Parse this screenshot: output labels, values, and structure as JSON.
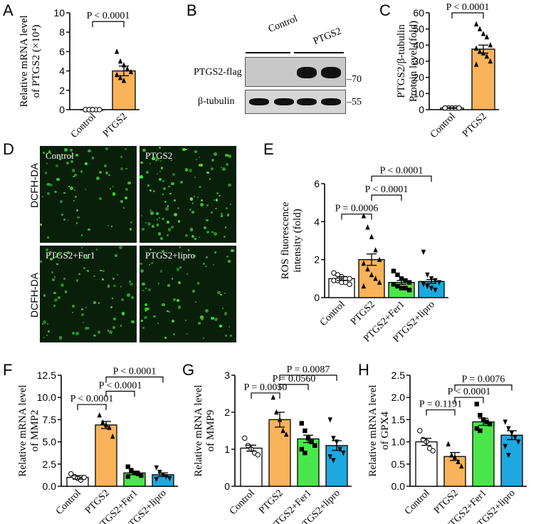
{
  "panels": {
    "A": {
      "letter": "A"
    },
    "B": {
      "letter": "B",
      "groups": [
        "Control",
        "PTGS2"
      ],
      "rows": [
        "PTGS2-flag",
        "β-tubulin"
      ],
      "markers": [
        "70",
        "55"
      ]
    },
    "C": {
      "letter": "C"
    },
    "D": {
      "letter": "D",
      "stain": "DCFH-DA",
      "images": [
        "Control",
        "PTGS2",
        "PTGS2+Fer1",
        "PTGS2+lipro"
      ]
    },
    "E": {
      "letter": "E"
    },
    "F": {
      "letter": "F"
    },
    "G": {
      "letter": "G"
    },
    "H": {
      "letter": "H"
    }
  },
  "chart_data": [
    {
      "id": "A",
      "type": "bar",
      "ylabel_lines": [
        "Relative mRNA level",
        "of PTGS2 (×10⁴)"
      ],
      "ylim": [
        0,
        10
      ],
      "yticks": [
        "0",
        "2",
        "4",
        "6",
        "8",
        "10"
      ],
      "categories": [
        "Control",
        "PTGS2"
      ],
      "values": [
        0.0,
        4.0
      ],
      "sem": [
        0.0,
        0.5
      ],
      "colors": [
        "#ffffff",
        "#f9b35a"
      ],
      "points": [
        [
          0,
          0,
          0,
          0,
          0,
          0,
          0,
          0
        ],
        [
          6.0,
          5.0,
          4.6,
          4.2,
          3.9,
          3.6,
          3.3,
          3.0
        ]
      ],
      "markers": [
        "circle",
        "triangle"
      ],
      "comparisons": [
        {
          "from": 0,
          "to": 1,
          "label": "P < 0.0001",
          "y": 9.1
        }
      ]
    },
    {
      "id": "C",
      "type": "bar",
      "ylabel_lines": [
        "PTGS2/β-tubulin",
        "Protein level (fold)"
      ],
      "ylim": [
        0,
        60
      ],
      "yticks": [
        "0",
        "10",
        "20",
        "30",
        "40",
        "50",
        "60"
      ],
      "categories": [
        "Control",
        "PTGS2"
      ],
      "values": [
        1.0,
        37.5
      ],
      "sem": [
        0.2,
        2.5
      ],
      "colors": [
        "#ffffff",
        "#f9b35a"
      ],
      "points": [
        [
          1,
          1,
          1,
          1,
          1,
          1,
          1,
          1,
          1,
          1,
          1
        ],
        [
          53,
          50,
          47,
          45,
          40,
          38,
          36,
          35,
          33,
          30,
          28
        ]
      ],
      "markers": [
        "circle",
        "triangle"
      ],
      "comparisons": [
        {
          "from": 0,
          "to": 1,
          "label": "P < 0.0001",
          "y": 60
        }
      ]
    },
    {
      "id": "E",
      "type": "bar",
      "ylabel_lines": [
        "ROS fluorescence",
        "intensity (fold)"
      ],
      "ylim": [
        0,
        6
      ],
      "yticks": [
        "0",
        "2",
        "4",
        "6"
      ],
      "categories": [
        "Control",
        "PTGS2",
        "PTGS2+Fer1",
        "PTGS2+lipro"
      ],
      "values": [
        1.0,
        2.0,
        0.8,
        0.85
      ],
      "sem": [
        0.1,
        0.3,
        0.1,
        0.1
      ],
      "colors": [
        "#ffffff",
        "#f9b35a",
        "#4be64b",
        "#1ea8e0"
      ],
      "points": [
        [
          1.3,
          1.2,
          1.1,
          1.0,
          1.0,
          0.9,
          0.9,
          0.8,
          0.8,
          0.7
        ],
        [
          4.3,
          3.7,
          3.2,
          2.5,
          2.0,
          1.8,
          1.5,
          1.2,
          1.0,
          0.8,
          0.6
        ],
        [
          1.4,
          1.2,
          1.0,
          0.9,
          0.8,
          0.7,
          0.6,
          0.5,
          0.5,
          0.4
        ],
        [
          2.4,
          1.2,
          1.0,
          0.9,
          0.8,
          0.7,
          0.6,
          0.5,
          0.4
        ]
      ],
      "markers": [
        "circle",
        "triangle",
        "square",
        "triangle-down"
      ],
      "comparisons": [
        {
          "from": 0,
          "to": 1,
          "label": "P = 0.0006",
          "y": 4.4
        },
        {
          "from": 1,
          "to": 2,
          "label": "P < 0.0001",
          "y": 5.4
        },
        {
          "from": 1,
          "to": 3,
          "label": "P < 0.0001",
          "y": 6.4
        }
      ]
    },
    {
      "id": "F",
      "type": "bar",
      "ylabel_lines": [
        "Relative mRNA level",
        "of MMP2"
      ],
      "ylim": [
        0,
        12.5
      ],
      "yticks": [
        "0.0",
        "2.5",
        "5.0",
        "7.5",
        "10.0",
        "12.5"
      ],
      "categories": [
        "Control",
        "PTGS2",
        "PTGS2+Fer1",
        "PTGS2+lipro"
      ],
      "values": [
        1.0,
        6.9,
        1.5,
        1.3
      ],
      "sem": [
        0.2,
        0.4,
        0.2,
        0.2
      ],
      "colors": [
        "#ffffff",
        "#f9b35a",
        "#4be64b",
        "#1ea8e0"
      ],
      "points": [
        [
          1.4,
          1.1,
          0.9,
          0.7,
          1.0
        ],
        [
          8.0,
          7.2,
          6.9,
          6.6,
          5.6
        ],
        [
          2.2,
          1.8,
          1.5,
          1.4,
          1.2,
          1.1
        ],
        [
          2.1,
          1.6,
          1.3,
          1.1,
          0.9,
          0.8
        ]
      ],
      "markers": [
        "circle",
        "triangle",
        "square",
        "triangle-down"
      ],
      "comparisons": [
        {
          "from": 0,
          "to": 1,
          "label": "P < 0.0001",
          "y": 9.2
        },
        {
          "from": 1,
          "to": 2,
          "label": "P < 0.0001",
          "y": 10.7
        },
        {
          "from": 1,
          "to": 3,
          "label": "P < 0.0001",
          "y": 12.3
        }
      ]
    },
    {
      "id": "G",
      "type": "bar",
      "ylabel_lines": [
        "Relative mRNA level",
        "of MMP9"
      ],
      "ylim": [
        0,
        3
      ],
      "yticks": [
        "0",
        "1",
        "2",
        "3"
      ],
      "categories": [
        "Control",
        "PTGS2",
        "PTGS2+Fer1",
        "PTGS2+lipro"
      ],
      "values": [
        1.03,
        1.8,
        1.28,
        1.1
      ],
      "sem": [
        0.08,
        0.2,
        0.1,
        0.13
      ],
      "colors": [
        "#ffffff",
        "#f9b35a",
        "#4be64b",
        "#1ea8e0"
      ],
      "points": [
        [
          1.3,
          1.1,
          1.0,
          0.9,
          0.85
        ],
        [
          2.4,
          2.0,
          1.8,
          1.5,
          1.4
        ],
        [
          1.7,
          1.5,
          1.3,
          1.2,
          1.1,
          1.0,
          0.9
        ],
        [
          1.8,
          1.3,
          1.2,
          1.0,
          0.9,
          0.8,
          0.7
        ]
      ],
      "markers": [
        "circle",
        "triangle",
        "square",
        "triangle-down"
      ],
      "comparisons": [
        {
          "from": 0,
          "to": 1,
          "label": "P = 0.0050",
          "y": 2.52
        },
        {
          "from": 1,
          "to": 2,
          "label": "P = 0.0560",
          "y": 2.75
        },
        {
          "from": 1,
          "to": 3,
          "label": "P = 0.0087",
          "y": 3.0
        }
      ]
    },
    {
      "id": "H",
      "type": "bar",
      "ylabel_lines": [
        "Relative mRNA level",
        "of GPX4"
      ],
      "ylim": [
        0,
        2.5
      ],
      "yticks": [
        "0.0",
        "0.5",
        "1.0",
        "1.5",
        "2.0",
        "2.5"
      ],
      "categories": [
        "Control",
        "PTGS2",
        "PTGS2+Fer1",
        "PTGS2+lipro"
      ],
      "values": [
        1.0,
        0.67,
        1.45,
        1.15
      ],
      "sem": [
        0.08,
        0.09,
        0.08,
        0.1
      ],
      "colors": [
        "#ffffff",
        "#f9b35a",
        "#4be64b",
        "#1ea8e0"
      ],
      "points": [
        [
          1.25,
          1.05,
          1.0,
          0.85,
          0.8
        ],
        [
          0.95,
          0.7,
          0.65,
          0.55,
          0.45
        ],
        [
          1.85,
          1.6,
          1.5,
          1.45,
          1.4,
          1.3,
          1.25
        ],
        [
          1.45,
          1.3,
          1.2,
          1.1,
          1.0,
          0.9,
          0.7
        ]
      ],
      "markers": [
        "circle",
        "triangle",
        "square",
        "triangle-down"
      ],
      "comparisons": [
        {
          "from": 0,
          "to": 1,
          "label": "P = 0.1191",
          "y": 1.72
        },
        {
          "from": 1,
          "to": 2,
          "label": "P < 0.0001",
          "y": 2.0
        },
        {
          "from": 1,
          "to": 3,
          "label": "P = 0.0076",
          "y": 2.28
        }
      ]
    }
  ]
}
